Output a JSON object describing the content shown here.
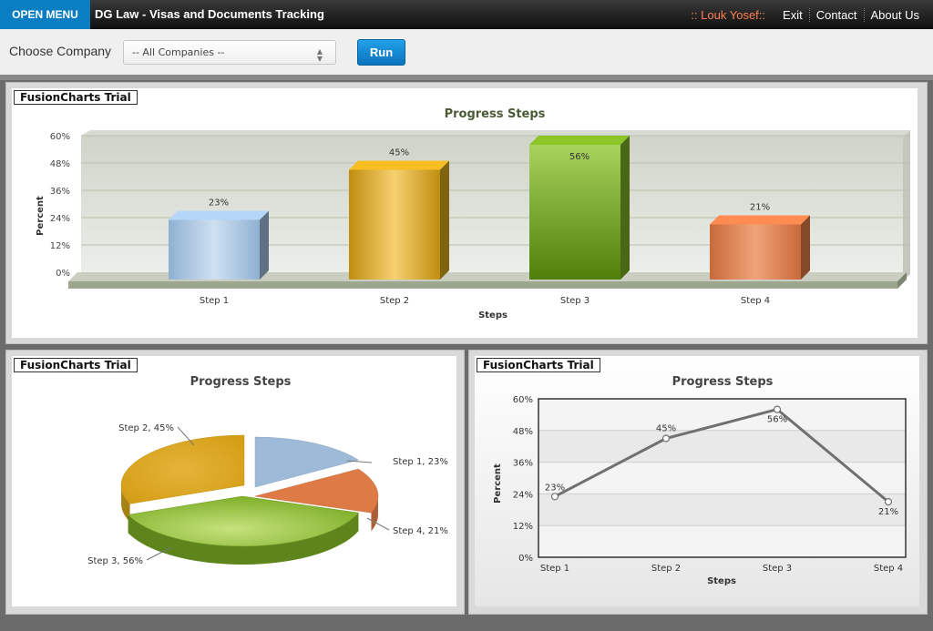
{
  "topbar": {
    "menu_label": "OPEN MENU",
    "app_title": "DG Law - Visas and Documents Tracking",
    "user": ":: Louk Yosef::",
    "links": [
      "Exit",
      "Contact",
      "About Us"
    ]
  },
  "toolbar": {
    "choose_label": "Choose Company",
    "company_value": "-- All Companies --",
    "run_label": "Run"
  },
  "panels": {
    "trial_label": "FusionCharts Trial"
  },
  "colors": {
    "accent": "#0a7ec2",
    "step1": "#9dbad8",
    "step2": "#d6a51c",
    "step3": "#79ab23",
    "step4": "#dd7a46"
  },
  "chart_data": [
    {
      "type": "bar",
      "title": "Progress Steps",
      "xlabel": "Steps",
      "ylabel": "Percent",
      "categories": [
        "Step 1",
        "Step 2",
        "Step 3",
        "Step 4"
      ],
      "values": [
        23,
        45,
        56,
        21
      ],
      "value_labels": [
        "23%",
        "45%",
        "56%",
        "21%"
      ],
      "yticks": [
        "0%",
        "12%",
        "24%",
        "36%",
        "48%",
        "60%"
      ],
      "ylim": [
        0,
        60
      ]
    },
    {
      "type": "pie",
      "title": "Progress Steps",
      "categories": [
        "Step 1",
        "Step 2",
        "Step 3",
        "Step 4"
      ],
      "values": [
        23,
        45,
        56,
        21
      ],
      "slice_labels": [
        "Step 1, 23%",
        "Step 2, 45%",
        "Step 3, 56%",
        "Step 4, 21%"
      ]
    },
    {
      "type": "line",
      "title": "Progress Steps",
      "xlabel": "Steps",
      "ylabel": "Percent",
      "categories": [
        "Step 1",
        "Step 2",
        "Step 3",
        "Step 4"
      ],
      "values": [
        23,
        45,
        56,
        21
      ],
      "value_labels": [
        "23%",
        "45%",
        "56%",
        "21%"
      ],
      "yticks": [
        "0%",
        "12%",
        "24%",
        "36%",
        "48%",
        "60%"
      ],
      "ylim": [
        0,
        60
      ]
    }
  ]
}
